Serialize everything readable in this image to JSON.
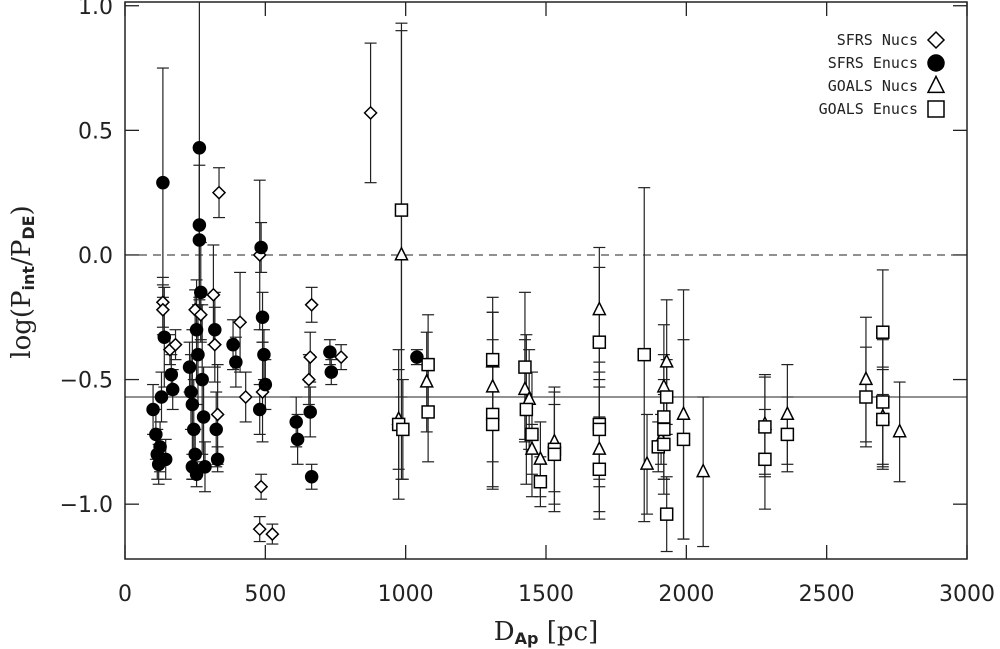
{
  "chart_data": {
    "type": "scatter",
    "xlabel_parts": [
      {
        "text": "D"
      },
      {
        "text": "Ap",
        "sub": true
      },
      {
        "text": " [pc]"
      }
    ],
    "ylabel_parts": [
      {
        "text": "log("
      },
      {
        "text": "P"
      },
      {
        "text": "int",
        "sub": true
      },
      {
        "text": "/"
      },
      {
        "text": "P"
      },
      {
        "text": "DE",
        "sub": true
      },
      {
        "text": ")"
      }
    ],
    "xlim": [
      0,
      3000
    ],
    "ylim": [
      -1.22,
      1.015
    ],
    "xticks": [
      0,
      500,
      1000,
      1500,
      2000,
      2500,
      3000
    ],
    "yticks": [
      {
        "value": -1.0,
        "label": "−1.0"
      },
      {
        "value": -0.5,
        "label": "−0.5"
      },
      {
        "value": 0.0,
        "label": "0.0"
      },
      {
        "value": 0.5,
        "label": "0.5"
      },
      {
        "value": 1.0,
        "label": "1.0"
      }
    ],
    "hlines": [
      {
        "value": 0,
        "style": "dashed"
      },
      {
        "value": -0.57,
        "style": "solid"
      }
    ],
    "legend": "upper right",
    "series": [
      {
        "name": "SFRS Nucs",
        "marker": "diamond",
        "filled": false,
        "color": "#000000",
        "x": [
          875,
          335,
          315,
          320,
          330,
          410,
          430,
          480,
          490,
          485,
          480,
          525,
          665,
          660,
          655,
          770,
          135,
          135,
          160,
          180,
          250,
          270
        ],
        "y": [
          0.57,
          0.25,
          -0.16,
          -0.36,
          -0.64,
          -0.27,
          -0.57,
          0.0,
          -0.55,
          -0.93,
          -1.1,
          -1.12,
          -0.2,
          -0.41,
          -0.5,
          -0.41,
          -0.19,
          -0.22,
          -0.38,
          -0.36,
          -0.22,
          -0.24
        ],
        "err": [
          0.28,
          0.1,
          0.2,
          0.15,
          0.2,
          0.2,
          0.1,
          0.3,
          0.2,
          0.05,
          0.05,
          0.04,
          0.07,
          0.1,
          0.1,
          0.05,
          0.1,
          0.1,
          0.06,
          0.06,
          0.08,
          0.1
        ]
      },
      {
        "name": "SFRS Enucs",
        "marker": "circle",
        "filled": true,
        "color": "#000000",
        "x": [
          100,
          110,
          115,
          120,
          125,
          130,
          135,
          140,
          145,
          165,
          170,
          230,
          235,
          240,
          240,
          245,
          250,
          255,
          255,
          260,
          265,
          265,
          265,
          270,
          275,
          280,
          285,
          320,
          325,
          330,
          385,
          395,
          485,
          490,
          495,
          500,
          480,
          610,
          615,
          660,
          665,
          730,
          735,
          1040
        ],
        "y": [
          -0.62,
          -0.72,
          -0.8,
          -0.84,
          -0.77,
          -0.57,
          0.29,
          -0.33,
          -0.82,
          -0.48,
          -0.54,
          -0.45,
          -0.55,
          -0.85,
          -0.6,
          -0.7,
          -0.8,
          -0.88,
          -0.3,
          -0.4,
          0.43,
          0.12,
          0.06,
          -0.15,
          -0.5,
          -0.65,
          -0.85,
          -0.3,
          -0.7,
          -0.82,
          -0.36,
          -0.43,
          0.03,
          -0.25,
          -0.4,
          -0.52,
          -0.62,
          -0.67,
          -0.74,
          -0.63,
          -0.89,
          -0.39,
          -0.47,
          -0.41
        ],
        "err": [
          0.1,
          0.1,
          0.1,
          0.08,
          0.1,
          0.1,
          0.46,
          0.2,
          0.08,
          0.08,
          0.08,
          0.1,
          0.15,
          0.05,
          0.3,
          0.2,
          0.1,
          0.05,
          0.2,
          0.2,
          0.6,
          0.3,
          0.3,
          0.2,
          0.3,
          0.2,
          0.1,
          0.15,
          0.15,
          0.05,
          0.1,
          0.1,
          0.1,
          0.1,
          0.1,
          0.1,
          0.1,
          0.1,
          0.1,
          0.1,
          0.05,
          0.05,
          0.05,
          0.03
        ]
      },
      {
        "name": "GOALS Nucs",
        "marker": "triangle",
        "filled": false,
        "color": "#000000",
        "x": [
          985,
          975,
          1075,
          1310,
          1310,
          1425,
          1440,
          1450,
          1480,
          1530,
          1690,
          1690,
          1860,
          1910,
          1930,
          1920,
          1990,
          2060,
          2280,
          2360,
          2640,
          2700,
          2760
        ],
        "y": [
          0.0,
          -0.66,
          -0.51,
          -0.43,
          -0.53,
          -0.54,
          -0.58,
          -0.78,
          -0.82,
          -0.75,
          -0.22,
          -0.78,
          -0.84,
          -0.74,
          -0.43,
          -0.53,
          -0.64,
          -0.87,
          -0.68,
          -0.64,
          -0.5,
          -0.65,
          -0.71
        ],
        "err": [
          0.9,
          0.2,
          0.2,
          0.2,
          0.3,
          0.2,
          0.2,
          0.1,
          0.15,
          0.2,
          0.25,
          0.25,
          0.2,
          0.1,
          0.25,
          0.25,
          0.5,
          0.3,
          0.2,
          0.2,
          0.25,
          0.2,
          0.2
        ]
      },
      {
        "name": "GOALS Enucs",
        "marker": "square",
        "filled": false,
        "color": "#000000",
        "x": [
          985,
          975,
          990,
          1080,
          1080,
          1310,
          1310,
          1310,
          1425,
          1430,
          1450,
          1480,
          1530,
          1530,
          1690,
          1690,
          1690,
          1690,
          1850,
          1900,
          1920,
          1920,
          1920,
          1930,
          1930,
          1990,
          2280,
          2280,
          2360,
          2640,
          2700,
          2700,
          2700
        ],
        "y": [
          0.18,
          -0.68,
          -0.7,
          -0.44,
          -0.63,
          -0.42,
          -0.64,
          -0.68,
          -0.45,
          -0.62,
          -0.72,
          -0.91,
          -0.78,
          -0.8,
          -0.35,
          -0.68,
          -0.7,
          -0.86,
          -0.4,
          -0.77,
          -0.65,
          -0.7,
          -0.76,
          -1.04,
          -0.57,
          -0.74,
          -0.82,
          -0.69,
          -0.72,
          -0.57,
          -0.31,
          -0.59,
          -0.66
        ],
        "err": [
          0.75,
          0.3,
          0.2,
          0.2,
          0.2,
          0.25,
          0.3,
          0.25,
          0.3,
          0.3,
          0.25,
          0.1,
          0.25,
          0.2,
          0.3,
          0.25,
          0.2,
          0.2,
          0.67,
          0.1,
          0.25,
          0.2,
          0.2,
          0.15,
          0.15,
          0.4,
          0.2,
          0.2,
          0.15,
          0.2,
          0.25,
          0.25,
          0.2
        ]
      }
    ]
  }
}
